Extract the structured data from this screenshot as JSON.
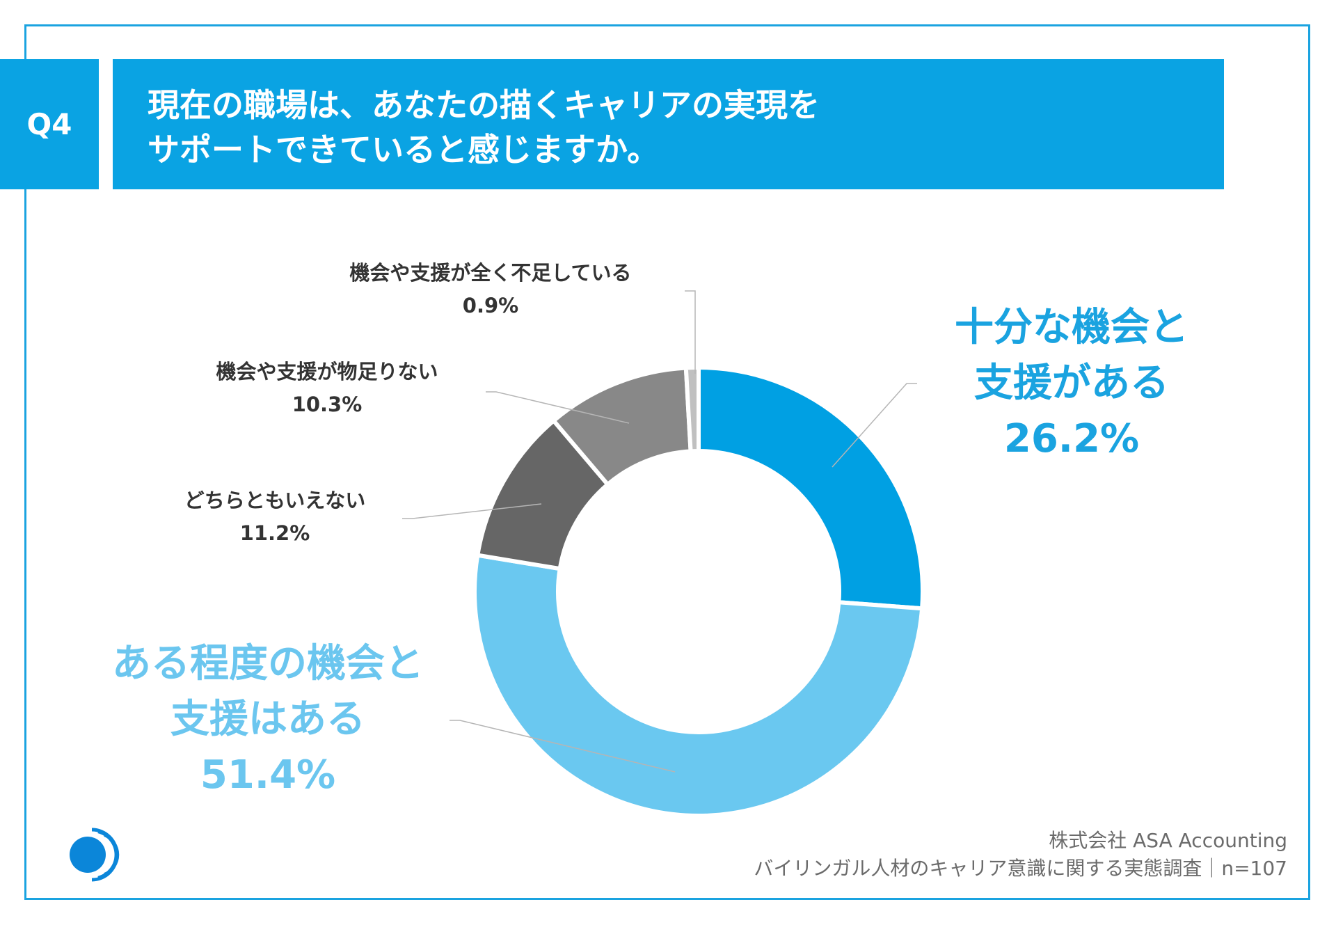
{
  "question": {
    "tag": "Q4",
    "lines": [
      "現在の職場は、あなたの描くキャリアの実現を",
      "サポートできていると感じますか。"
    ]
  },
  "chart_data": {
    "type": "pie",
    "title": "現在の職場は、あなたの描くキャリアの実現をサポートできていると感じますか。",
    "slices": [
      {
        "label": "十分な機会と支援がある",
        "value": 26.2,
        "display": "26.2%",
        "color": "#00a0e3"
      },
      {
        "label": "ある程度の機会と支援はある",
        "value": 51.4,
        "display": "51.4%",
        "color": "#6ac8f0"
      },
      {
        "label": "どちらともいえない",
        "value": 11.2,
        "display": "11.2%",
        "color": "#666666"
      },
      {
        "label": "機会や支援が物足りない",
        "value": 10.3,
        "display": "10.3%",
        "color": "#888888"
      },
      {
        "label": "機会や支援が全く不足している",
        "value": 0.9,
        "display": "0.9%",
        "color": "#c0c0c0"
      }
    ],
    "labels": {
      "s0": [
        "十分な機会と",
        "支援がある"
      ],
      "s1": [
        "ある程度の機会と",
        "支援はある"
      ]
    }
  },
  "source": {
    "company": "株式会社 ASA Accounting",
    "survey": "バイリンガル人材のキャリア意識に関する実態調査｜n=107"
  },
  "colors": {
    "accent": "#0aa3e3",
    "frame": "#1aa3e0",
    "connector": "#b5b5b5"
  },
  "logo": {
    "icon": "asa-logo-icon"
  }
}
